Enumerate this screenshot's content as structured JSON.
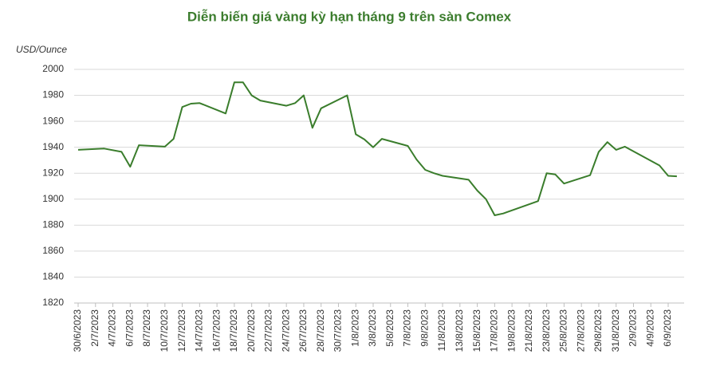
{
  "chart_data": {
    "type": "line",
    "title": "Diễn biến giá vàng kỳ hạn tháng 9 trên sàn Comex",
    "y_label": "USD/Ounce",
    "x": [
      "30/6/2023",
      "3/7/2023",
      "5/7/2023",
      "6/7/2023",
      "7/7/2023",
      "10/7/2023",
      "11/7/2023",
      "12/7/2023",
      "13/7/2023",
      "14/7/2023",
      "17/7/2023",
      "18/7/2023",
      "19/7/2023",
      "20/7/2023",
      "21/7/2023",
      "24/7/2023",
      "25/7/2023",
      "26/7/2023",
      "27/7/2023",
      "28/7/2023",
      "31/7/2023",
      "1/8/2023",
      "2/8/2023",
      "3/8/2023",
      "4/8/2023",
      "7/8/2023",
      "8/8/2023",
      "9/8/2023",
      "10/8/2023",
      "11/8/2023",
      "14/8/2023",
      "15/8/2023",
      "16/8/2023",
      "17/8/2023",
      "18/8/2023",
      "22/8/2023",
      "23/8/2023",
      "24/8/2023",
      "25/8/2023",
      "28/8/2023",
      "29/8/2023",
      "30/8/2023",
      "31/8/2023",
      "1/9/2023",
      "5/9/2023",
      "6/9/2023",
      "7/9/2023"
    ],
    "series": [
      {
        "name": "Comex",
        "color": "#3a7d2c",
        "values": [
          1938,
          1939,
          1936.5,
          1925,
          1941.6,
          1940.5,
          1946.5,
          1971,
          1973.6,
          1974,
          1966,
          1990,
          1990,
          1980,
          1976,
          1972,
          1974,
          1980,
          1955,
          1970,
          1980,
          1950,
          1946,
          1940,
          1946.5,
          1941,
          1930.6,
          1922.6,
          1920,
          1918,
          1915,
          1906.6,
          1900,
          1887.6,
          1889,
          1898.5,
          1920,
          1919,
          1912,
          1918.5,
          1936.5,
          1944,
          1938,
          1940.5,
          1926,
          1918,
          1917.6
        ]
      }
    ],
    "xticks": [
      "30/6/2023",
      "2/7/2023",
      "4/7/2023",
      "6/7/2023",
      "8/7/2023",
      "10/7/2023",
      "12/7/2023",
      "14/7/2023",
      "16/7/2023",
      "18/7/2023",
      "20/7/2023",
      "22/7/2023",
      "24/7/2023",
      "26/7/2023",
      "28/7/2023",
      "30/7/2023",
      "1/8/2023",
      "3/8/2023",
      "5/8/2023",
      "7/8/2023",
      "9/8/2023",
      "11/8/2023",
      "13/8/2023",
      "15/8/2023",
      "17/8/2023",
      "19/8/2023",
      "21/8/2023",
      "23/8/2023",
      "25/8/2023",
      "27/8/2023",
      "29/8/2023",
      "31/8/2023",
      "2/9/2023",
      "4/9/2023",
      "6/9/2023"
    ],
    "ylim": [
      1820,
      2000
    ],
    "yticks": [
      1820,
      1840,
      1860,
      1880,
      1900,
      1920,
      1940,
      1960,
      1980,
      2000
    ],
    "grid": true
  }
}
